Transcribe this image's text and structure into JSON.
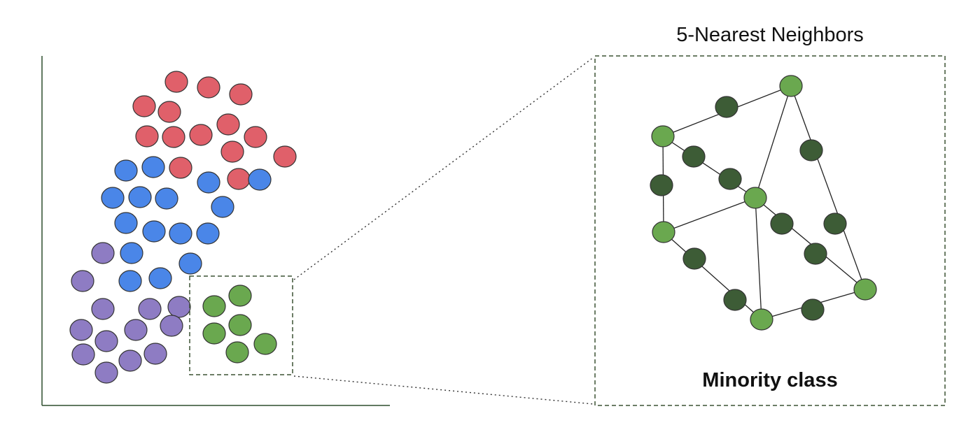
{
  "panel": {
    "title": "5-Nearest Neighbors",
    "caption": "Minority class"
  },
  "colors": {
    "red_class": "#e0606a",
    "blue_class": "#4a86e8",
    "purple_class": "#8e7cc3",
    "minority_class": "#6aa84f",
    "synthetic_points": "#3d5c36",
    "axis": "#2f4f2f",
    "edges": "#222222"
  }
}
